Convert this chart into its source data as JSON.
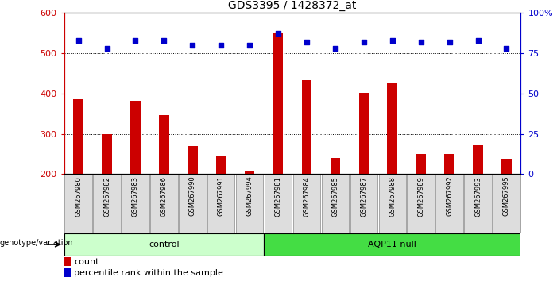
{
  "title": "GDS3395 / 1428372_at",
  "categories": [
    "GSM267980",
    "GSM267982",
    "GSM267983",
    "GSM267986",
    "GSM267990",
    "GSM267991",
    "GSM267994",
    "GSM267981",
    "GSM267984",
    "GSM267985",
    "GSM267987",
    "GSM267988",
    "GSM267989",
    "GSM267992",
    "GSM267993",
    "GSM267995"
  ],
  "bar_values": [
    385,
    300,
    382,
    347,
    270,
    247,
    207,
    549,
    432,
    240,
    401,
    427,
    250,
    250,
    271,
    238
  ],
  "percentile_values": [
    83,
    78,
    83,
    83,
    80,
    80,
    80,
    87,
    82,
    78,
    82,
    83,
    82,
    82,
    83,
    78
  ],
  "bar_color": "#CC0000",
  "percentile_color": "#0000CC",
  "ylim_left": [
    200,
    600
  ],
  "ylim_right": [
    0,
    100
  ],
  "yticks_left": [
    200,
    300,
    400,
    500,
    600
  ],
  "yticks_right": [
    0,
    25,
    50,
    75,
    100
  ],
  "yticklabels_right": [
    "0",
    "25",
    "50",
    "75",
    "100%"
  ],
  "grid_values": [
    300,
    400,
    500
  ],
  "control_label": "control",
  "aqp_label": "AQP11 null",
  "control_count": 7,
  "aqp_count": 9,
  "genotype_label": "genotype/variation",
  "legend_count_label": "count",
  "legend_percentile_label": "percentile rank within the sample",
  "control_color": "#CCFFCC",
  "aqp_color": "#44DD44",
  "xticklabel_bg": "#DDDDDD",
  "bar_bottom": 200,
  "bar_width": 0.35
}
